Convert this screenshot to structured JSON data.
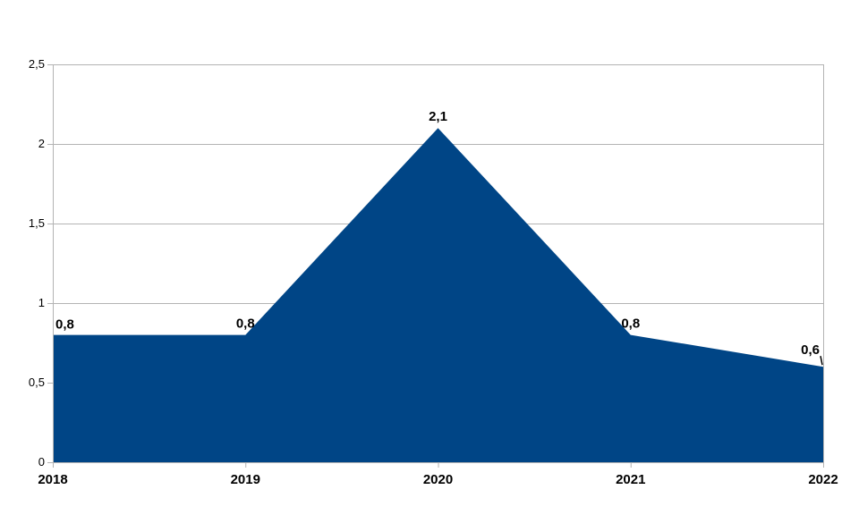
{
  "chart_data": {
    "type": "area",
    "categories": [
      "2018",
      "2019",
      "2020",
      "2021",
      "2022"
    ],
    "values": [
      0.8,
      0.8,
      2.1,
      0.8,
      0.6
    ],
    "value_labels": [
      "0,8",
      "0,8",
      "2,1",
      "0,8",
      "0,6"
    ],
    "ylim": [
      0,
      2.5
    ],
    "y_ticks": [
      {
        "value": 0,
        "label": "0"
      },
      {
        "value": 0.5,
        "label": "0,5"
      },
      {
        "value": 1,
        "label": "1"
      },
      {
        "value": 1.5,
        "label": "1,5"
      },
      {
        "value": 2,
        "label": "2"
      },
      {
        "value": 2.5,
        "label": "2,5"
      }
    ],
    "grid": true,
    "legend_position": "none",
    "colors": {
      "area_fill": "#004586",
      "grid_line": "#b3b3b3",
      "axis_line": "#b3b3b3",
      "text": "#000000",
      "background": "#ffffff"
    }
  }
}
